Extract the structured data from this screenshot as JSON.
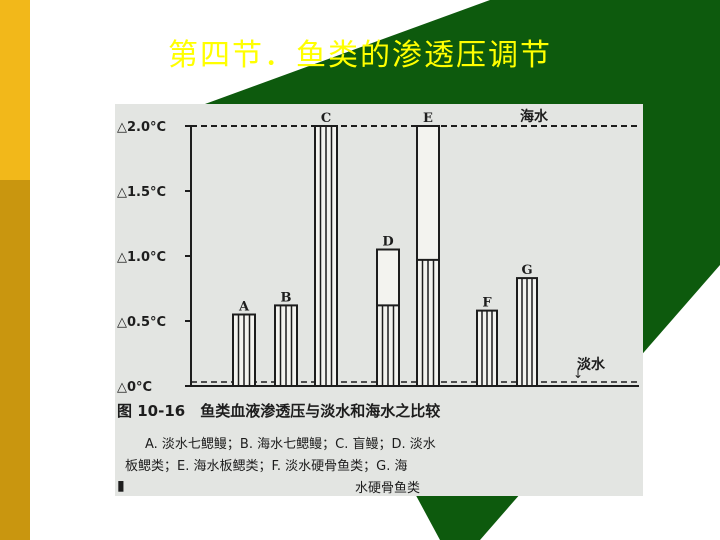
{
  "slide": {
    "title": "第四节．鱼类的渗透压调节"
  },
  "colors": {
    "stripe_top": "#f2b81a",
    "stripe_bottom": "#c9960f",
    "diamond": "#0d5a0d",
    "title": "#ffff00",
    "photo_bg": "#e3e5e2",
    "ink": "#1d1d1d"
  },
  "figure": {
    "sea_label": "海水",
    "fresh_label": "淡水",
    "caption": "图 10-16　鱼类血液渗透压与淡水和海水之比较",
    "legend_line1": "A. 淡水七鳃鳗；B. 海水七鳃鳗；C. 盲鳗；D. 淡水",
    "legend_line2": "板鳃类；E. 海水板鳃类；F. 淡水硬骨鱼类；G. 海",
    "legend_line3": "水硬骨鱼类",
    "y_ticks": [
      "△2.0°C",
      "△1.5°C",
      "△1.0°C",
      "△0.5°C",
      "△0°C"
    ],
    "chart_data": {
      "type": "bar",
      "categories": [
        "A",
        "B",
        "C",
        "D",
        "E",
        "F",
        "G"
      ],
      "values": [
        0.55,
        0.62,
        2.0,
        1.05,
        2.0,
        0.58,
        0.83
      ],
      "upper_segment_start": [
        null,
        null,
        null,
        0.62,
        0.97,
        null,
        null
      ],
      "reference_lines": [
        {
          "label": "海水",
          "value": 2.0
        },
        {
          "label": "淡水",
          "value": 0.02
        }
      ],
      "ylim": [
        0,
        2.1
      ]
    }
  }
}
